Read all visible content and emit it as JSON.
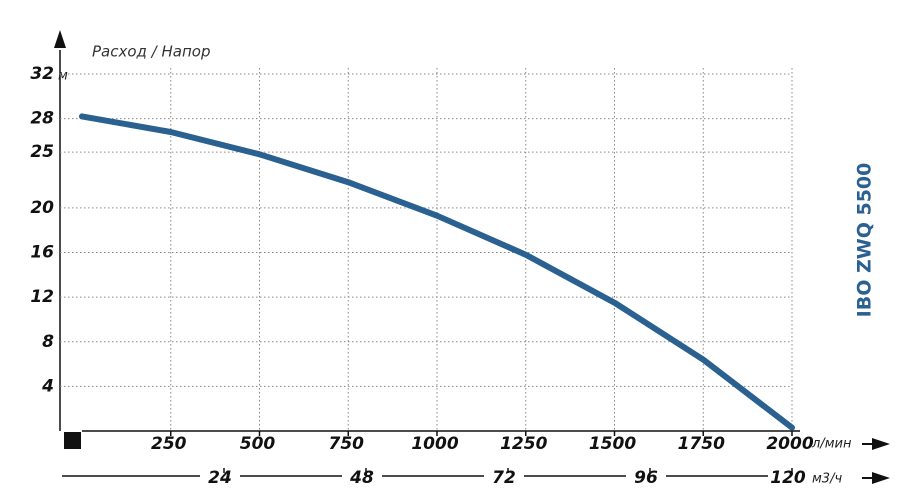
{
  "chart_data": {
    "type": "line",
    "title": "IBO ZWQ 5500",
    "y_label": "Расход / Напор",
    "y_unit": "м",
    "x_unit": "л/мин",
    "x2_unit": "м3/ч",
    "x": [
      0,
      250,
      500,
      750,
      1000,
      1250,
      1500,
      1750,
      2000
    ],
    "series": [
      {
        "name": "IBO ZWQ 5500",
        "color": "#2a6190",
        "values": [
          28.2,
          26.8,
          24.8,
          22.3,
          19.3,
          15.8,
          11.5,
          6.4,
          0.3
        ]
      }
    ],
    "xlim": [
      0,
      2000
    ],
    "xticks": [
      250,
      500,
      750,
      1000,
      1250,
      1500,
      1750,
      2000
    ],
    "x2lim": [
      0,
      120
    ],
    "x2ticks": [
      24,
      48,
      72,
      96,
      120
    ],
    "ylim": [
      0,
      32
    ],
    "yticks": [
      4,
      8,
      12,
      16,
      20,
      25,
      28,
      32
    ],
    "grid": true
  }
}
